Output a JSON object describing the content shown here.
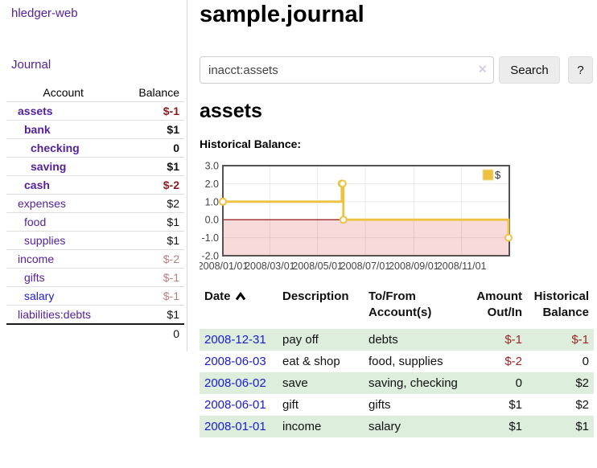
{
  "app": {
    "title": "hledger-web"
  },
  "colors": {
    "purple_link": "#54219c",
    "blue_link": "#1a1ad1",
    "neg_strong": "#8b1c1c",
    "neg_soft": "#b97e7e",
    "neg_table": "#9e2424",
    "row_green": "#ddeedd",
    "accent_gold": "#edc240"
  },
  "sidebar": {
    "journal_link": "Journal",
    "headers": {
      "account": "Account",
      "balance": "Balance"
    },
    "accounts": [
      {
        "name": "assets",
        "level": 1,
        "bold": true,
        "color": "purple",
        "balance": "$-1",
        "balance_style": "neg-strong"
      },
      {
        "name": "bank",
        "level": 2,
        "bold": true,
        "color": "purple",
        "balance": "$1",
        "balance_style": "normal"
      },
      {
        "name": "checking",
        "level": 3,
        "bold": true,
        "color": "purple",
        "balance": "0",
        "balance_style": "normal"
      },
      {
        "name": "saving",
        "level": 3,
        "bold": true,
        "color": "purple",
        "balance": "$1",
        "balance_style": "normal"
      },
      {
        "name": "cash",
        "level": 2,
        "bold": true,
        "color": "purple",
        "balance": "$-2",
        "balance_style": "neg-strong"
      },
      {
        "name": "expenses",
        "level": 1,
        "bold": false,
        "color": "purple",
        "balance": "$2",
        "balance_style": "normal"
      },
      {
        "name": "food",
        "level": 2,
        "bold": false,
        "color": "purple",
        "balance": "$1",
        "balance_style": "normal"
      },
      {
        "name": "supplies",
        "level": 2,
        "bold": false,
        "color": "purple",
        "balance": "$1",
        "balance_style": "normal"
      },
      {
        "name": "income",
        "level": 1,
        "bold": false,
        "color": "purple",
        "balance": "$-2",
        "balance_style": "neg-soft"
      },
      {
        "name": "gifts",
        "level": 2,
        "bold": false,
        "color": "purple",
        "balance": "$-1",
        "balance_style": "neg-soft"
      },
      {
        "name": "salary",
        "level": 2,
        "bold": false,
        "color": "blue",
        "balance": "$-1",
        "balance_style": "neg-soft"
      },
      {
        "name": "liabilities:debts",
        "level": 1,
        "bold": false,
        "color": "purple",
        "balance": "$1",
        "balance_style": "normal"
      }
    ],
    "total": "0"
  },
  "main": {
    "title": "sample.journal",
    "search": {
      "value": "inacct:assets",
      "clear_icon": "×",
      "button_label": "Search",
      "help_label": "?"
    },
    "account_heading": "assets",
    "chart_label": "Historical Balance:"
  },
  "chart_data": {
    "type": "line",
    "step": true,
    "title": "Historical Balance",
    "legend": {
      "position": "top-right",
      "label": "$"
    },
    "series": [
      {
        "name": "$",
        "points": [
          {
            "date": "2008-01-01",
            "value": 1
          },
          {
            "date": "2008-06-01",
            "value": 2
          },
          {
            "date": "2008-06-02",
            "value": 2
          },
          {
            "date": "2008-06-03",
            "value": 0
          },
          {
            "date": "2008-12-31",
            "value": -1
          }
        ]
      }
    ],
    "x_range": [
      "2008-01-01",
      "2009-01-01"
    ],
    "ylim": [
      -2,
      3
    ],
    "yticks": [
      "3.0",
      "2.0",
      "1.0",
      "0.0",
      "-1.0",
      "-2.0"
    ],
    "ytick_values": [
      3,
      2,
      1,
      0,
      -1,
      -2
    ],
    "xticks": [
      {
        "label": "2008/01/01",
        "date": "2008-01-01"
      },
      {
        "label": "2008/03/01",
        "date": "2008-03-01"
      },
      {
        "label": "2008/05/01",
        "date": "2008-05-01"
      },
      {
        "label": "2008/07/01",
        "date": "2008-07-01"
      },
      {
        "label": "2008/09/01",
        "date": "2008-09-01"
      },
      {
        "label": "2008/11/01",
        "date": "2008-11-01"
      }
    ],
    "grid": true,
    "negative_region_fill": "#f9dada",
    "zero_line_color": "#8b0000",
    "series_color": "#edc240"
  },
  "register": {
    "headers": [
      {
        "lines": [
          "Date"
        ],
        "align": "left",
        "sort": "asc"
      },
      {
        "lines": [
          "Description"
        ],
        "align": "left"
      },
      {
        "lines": [
          "To/From",
          "Account(s)"
        ],
        "align": "left"
      },
      {
        "lines": [
          "Amount",
          "Out/In"
        ],
        "align": "right"
      },
      {
        "lines": [
          "Historical",
          "Balance"
        ],
        "align": "right"
      }
    ],
    "rows": [
      {
        "date": "2008-12-31",
        "description": "pay off",
        "accounts": "debts",
        "amount": "$-1",
        "amount_negative": true,
        "balance": "$-1",
        "balance_negative": true,
        "shaded": true
      },
      {
        "date": "2008-06-03",
        "description": "eat & shop",
        "accounts": "food, supplies",
        "amount": "$-2",
        "amount_negative": true,
        "balance": "0",
        "balance_negative": false,
        "shaded": false
      },
      {
        "date": "2008-06-02",
        "description": "save",
        "accounts": "saving, checking",
        "amount": "0",
        "amount_negative": false,
        "balance": "$2",
        "balance_negative": false,
        "shaded": true
      },
      {
        "date": "2008-06-01",
        "description": "gift",
        "accounts": "gifts",
        "amount": "$1",
        "amount_negative": false,
        "balance": "$2",
        "balance_negative": false,
        "shaded": false
      },
      {
        "date": "2008-01-01",
        "description": "income",
        "accounts": "salary",
        "amount": "$1",
        "amount_negative": false,
        "balance": "$1",
        "balance_negative": false,
        "shaded": true
      }
    ]
  }
}
